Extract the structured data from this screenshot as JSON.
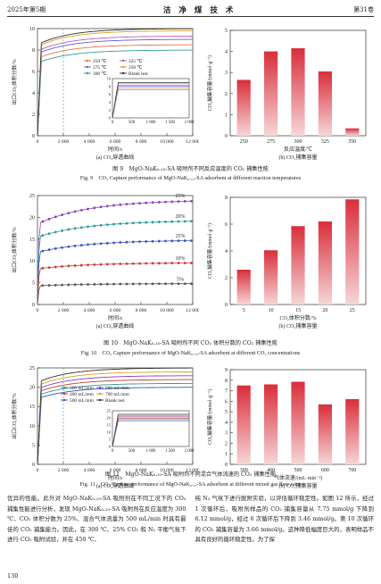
{
  "header": {
    "left": "2025年第5期",
    "center": "洁 净 煤 技 术",
    "right": "第31卷"
  },
  "fig9": {
    "chart_data": [
      {
        "type": "line",
        "ylabel": "出口CO₂体积分数/%",
        "xlabel": "时间/s",
        "caption": "(a) CO₂穿透曲线",
        "xlim": [
          0,
          12000
        ],
        "ylim": [
          0,
          10
        ],
        "yticks": [
          "0",
          "2",
          "4",
          "6",
          "8",
          "10"
        ],
        "xticks": [
          "0",
          "2 000",
          "4 000",
          "6 000",
          "8 000",
          "10 000",
          "12 000"
        ],
        "legend": [
          "250 ℃",
          "275 ℃",
          "300 ℃",
          "325 ℃",
          "350 ℃",
          "Blank test"
        ],
        "inset": {
          "xticks": [
            "0",
            "500",
            "1 000",
            "1 500",
            "2 000"
          ],
          "yticks": [
            "0",
            "2",
            "4",
            "6",
            "8",
            "10"
          ]
        },
        "series": [
          {
            "name": "250 ℃",
            "color": "#e8733a",
            "plateau": 8.5
          },
          {
            "name": "275 ℃",
            "color": "#6b5bd6",
            "plateau": 9.0
          },
          {
            "name": "300 ℃",
            "color": "#2f9e9a",
            "plateau": 8.0
          },
          {
            "name": "325 ℃",
            "color": "#b85cc4",
            "plateau": 9.3
          },
          {
            "name": "350 ℃",
            "color": "#d9a21f",
            "plateau": 9.8
          },
          {
            "name": "Blank test",
            "color": "#333333",
            "plateau": 10.0
          }
        ]
      },
      {
        "type": "bar",
        "ylabel": "CO₂捕集容量/(mmol·g⁻¹)",
        "xlabel": "反应温度/℃",
        "caption": "(b) CO₂捕集容量",
        "categories": [
          "250",
          "275",
          "300",
          "325",
          "350"
        ],
        "values": [
          2.65,
          4.0,
          4.15,
          3.05,
          0.35
        ],
        "ylim": [
          0,
          5
        ],
        "yticks": [
          "0",
          "1",
          "2",
          "3",
          "4",
          "5"
        ]
      }
    ],
    "caption_cn": "图 9　MgO-NaK₀.₁₅-SA 吸附剂不同反应温度的 CO₂ 捕集性能",
    "caption_en": "Fig. 9　CO₂ Capture performance of MgO-NaK₀.₁₅-SA adsorbent at different reaction temperatures"
  },
  "fig10": {
    "chart_data": [
      {
        "type": "scatter",
        "ylabel": "出口CO₂体积分数/%",
        "xlabel": "时间/s",
        "caption": "(a) CO₂穿透曲线",
        "xlim": [
          0,
          12000
        ],
        "ylim": [
          0,
          25
        ],
        "yticks": [
          "0",
          "5",
          "10",
          "15",
          "20",
          "25"
        ],
        "xticks": [
          "0",
          "2 000",
          "4 000",
          "6 000",
          "8 000",
          "10 000",
          "12 000"
        ],
        "labels": [
          "25%",
          "20%",
          "15%",
          "10%",
          "5%"
        ],
        "series": [
          {
            "name": "25%",
            "color": "#8a3fb8",
            "start": 18.5,
            "end": 24.0
          },
          {
            "name": "20%",
            "color": "#2a9a9a",
            "start": 15.5,
            "end": 19.3
          },
          {
            "name": "15%",
            "color": "#3a56b8",
            "start": 12.0,
            "end": 14.8
          },
          {
            "name": "10%",
            "color": "#c83a2e",
            "start": 8.2,
            "end": 9.6
          },
          {
            "name": "5%",
            "color": "#555555",
            "start": 4.3,
            "end": 4.8
          }
        ]
      },
      {
        "type": "bar",
        "ylabel": "CO₂捕集容量/(mmol·g⁻¹)",
        "xlabel": "CO₂体积分数/%",
        "caption": "(b) CO₂捕集容量",
        "categories": [
          "5",
          "10",
          "15",
          "20",
          "25"
        ],
        "values": [
          2.6,
          4.05,
          5.85,
          6.2,
          7.85
        ],
        "ylim": [
          0,
          8
        ],
        "yticks": [
          "0",
          "2",
          "4",
          "6",
          "8"
        ]
      }
    ],
    "caption_cn": "图 10　MgO-NaK₀.₁₅-SA 吸附剂不同 CO₂ 体积分数的 CO₂ 捕集性能",
    "caption_en": "Fig. 10　CO₂ Capture performance of MgO-NaK₀.₁₅-SA adsorbent at different CO₂ concentrations"
  },
  "fig11": {
    "chart_data": [
      {
        "type": "line",
        "ylabel": "出口CO₂体积分数/%",
        "xlabel": "时间/s",
        "caption": "(a) CO₂穿透曲线",
        "xlim": [
          0,
          12000
        ],
        "ylim": [
          0,
          25
        ],
        "yticks": [
          "0",
          "5",
          "10",
          "15",
          "20",
          "25"
        ],
        "xticks": [
          "0",
          "2 000",
          "4 000",
          "6 000",
          "8 000",
          "10 000",
          "12 000"
        ],
        "legend": [
          "300 mL/mm",
          "400 mL/mm",
          "500 mL/mm",
          "600 mL/mm",
          "700 mL/mm",
          "Blank test"
        ],
        "inset": {
          "xticks": [
            "0",
            "500",
            "1 000",
            "1 500",
            "2 000"
          ],
          "yticks": [
            "0",
            "5",
            "10",
            "15",
            "20",
            "25"
          ]
        },
        "series": [
          {
            "name": "300 mL/mm",
            "color": "#2f9e9a",
            "plateau": 21.0
          },
          {
            "name": "400 mL/mm",
            "color": "#c83a2e",
            "plateau": 22.0
          },
          {
            "name": "500 mL/mm",
            "color": "#3a56b8",
            "plateau": 20.0
          },
          {
            "name": "600 mL/mm",
            "color": "#8a3fb8",
            "plateau": 23.0
          },
          {
            "name": "700 mL/mm",
            "color": "#d9a21f",
            "plateau": 24.0
          },
          {
            "name": "Blank test",
            "color": "#333333",
            "plateau": 25.0
          }
        ]
      },
      {
        "type": "bar",
        "ylabel": "CO₂捕集容量/(mmol·g⁻¹)",
        "xlabel": "气体流速/(mL·min⁻¹)",
        "caption": "(b) CO₂捕集容量",
        "categories": [
          "300",
          "400",
          "500",
          "600",
          "700"
        ],
        "values": [
          7.5,
          7.6,
          7.85,
          5.7,
          6.2
        ],
        "ylim": [
          0,
          9
        ],
        "yticks": [
          "0",
          "1",
          "2",
          "3",
          "4",
          "5",
          "6",
          "7",
          "8",
          "9"
        ]
      }
    ],
    "caption_cn": "图 11　MgO-NaK₀.₁₅-SA 吸附剂不同混合气体流速的 CO₂ 捕集性能",
    "caption_en": "Fig. 11　CO₂ Capture performance of MgO-NaK₀.₁₅-SA adsorbent at different mixed gas flow rates"
  },
  "body": {
    "left": "优异的性能。此外对 MgO-NaK₀.₁₅-SA 吸附剂在不同工况下的 CO₂ 捕集性能进行分析，发现 MgO-NaK₀.₁₅-SA 吸附剂在反应温度为 300 ℃、CO₂ 体积分数为 25%、混合气体流量为 500 mL/min 时具有最佳的 CO₂ 捕集能力。因此，在 300 ℃、25% CO₂ 和 N₂ 平衡气氛下进行 CO₂ 吸附试验，并在 450 ℃、",
    "right": "纯 N₂ 气氛下进行脱附实验，以评估循环稳定性。如图 12 所示，经过 1 次循环后，吸附剂样品的 CO₂ 捕集容量从 7.75 mmol/g 下降到 6.12 mmol/g，经过 6 次循环后下降到 3.46 mmol/g。第 10 次循环的 CO₂ 捕集容量为 3.66 mmol/g。这种降低幅度巨大的，表明样品不具有良好的循环稳定性。为了探"
  },
  "page_number": "130"
}
